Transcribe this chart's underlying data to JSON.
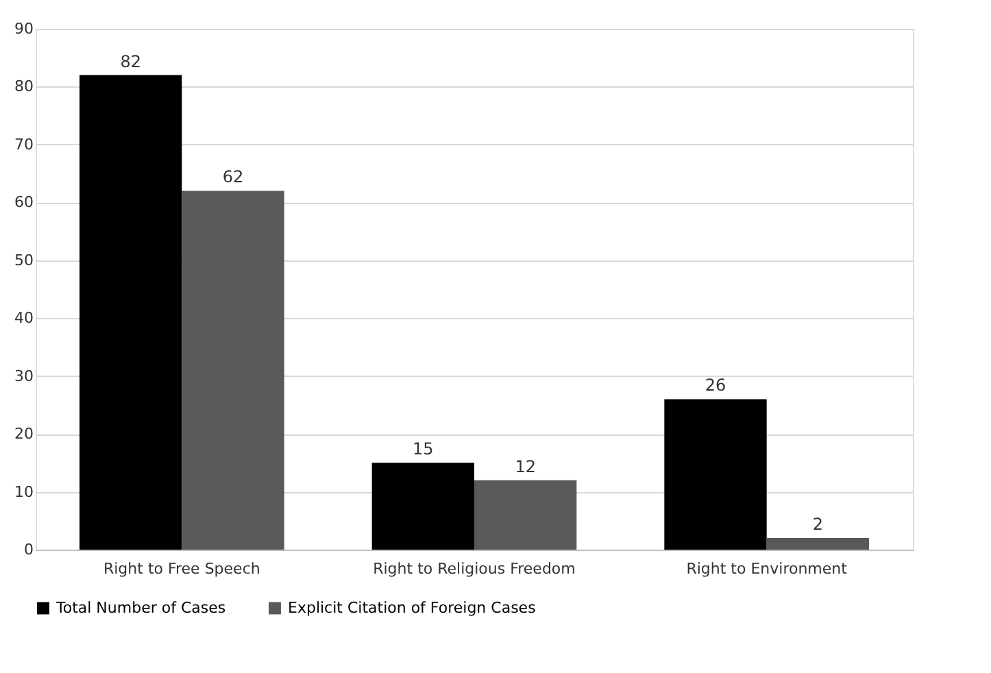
{
  "chart_data": {
    "type": "bar",
    "categories": [
      "Right to Free Speech",
      "Right to Religious Freedom",
      "Right to Environment"
    ],
    "series": [
      {
        "name": "Total Number of Cases",
        "color": "#000000",
        "values": [
          82,
          15,
          26
        ]
      },
      {
        "name": "Explicit Citation of Foreign Cases",
        "color": "#595959",
        "values": [
          62,
          12,
          2
        ]
      }
    ],
    "ylim": [
      0,
      90
    ],
    "yticks": [
      0,
      10,
      20,
      30,
      40,
      50,
      60,
      70,
      80,
      90
    ],
    "grid": "y",
    "legend": "bottom",
    "data_labels": true
  }
}
